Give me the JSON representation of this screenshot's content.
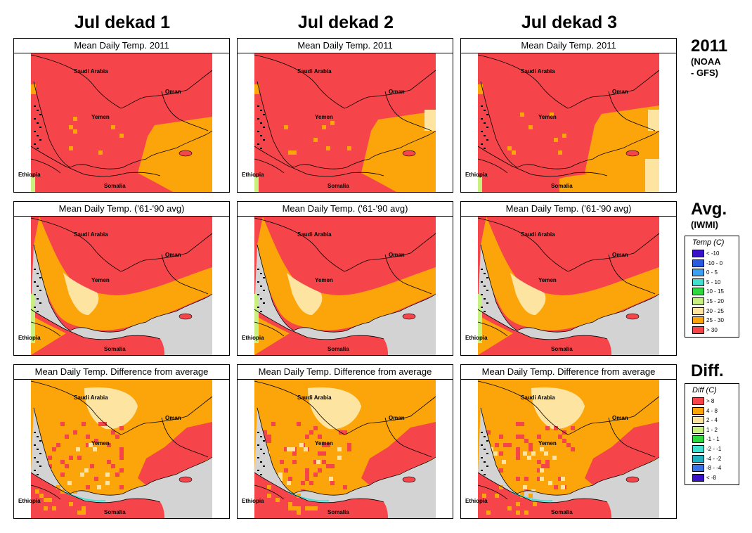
{
  "columns": [
    "Jul dekad 1",
    "Jul dekad 2",
    "Jul dekad 3"
  ],
  "rows": [
    {
      "panel_titles": [
        "Mean Daily Temp. 2011",
        "Mean Daily Temp. 2011",
        "Mean Daily Temp. 2011"
      ],
      "side_label": "2011",
      "side_sublabel": [
        "(NOAA",
        "- GFS)"
      ]
    },
    {
      "panel_titles": [
        "Mean Daily Temp. ('61-'90 avg)",
        "Mean Daily Temp. ('61-'90 avg)",
        "Mean Daily Temp. ('61-'90 avg)"
      ],
      "side_label": "Avg.",
      "side_sublabel": [
        "(IWMI)"
      ]
    },
    {
      "panel_titles": [
        "Mean Daily Temp. Difference from average",
        "Mean Daily Temp. Difference from average",
        "Mean Daily Temp. Difference from average"
      ],
      "side_label": "Diff.",
      "side_sublabel": []
    }
  ],
  "map_labels": {
    "saudi_arabia": "Saudi Arabia",
    "oman": "Oman",
    "yemen": "Yemen",
    "ethiopia": "Ethiopia",
    "somalia": "Somalia"
  },
  "legend_temp": {
    "title": "Temp (C)",
    "items": [
      {
        "label": "< -10",
        "color": "#3a10c8"
      },
      {
        "label": "-10 -  0",
        "color": "#2a5ae0"
      },
      {
        "label": "0 -  5",
        "color": "#3aa0f0"
      },
      {
        "label": "5 - 10",
        "color": "#40e0d0"
      },
      {
        "label": "10 - 15",
        "color": "#30d840"
      },
      {
        "label": "15 - 20",
        "color": "#c8f080"
      },
      {
        "label": "20 - 25",
        "color": "#fde4a0"
      },
      {
        "label": "25 - 30",
        "color": "#fca50a"
      },
      {
        "label": "> 30",
        "color": "#f5454a"
      }
    ]
  },
  "legend_diff": {
    "title": "Diff (C)",
    "items": [
      {
        "label": "> 8",
        "color": "#f5454a"
      },
      {
        "label": "4 - 8",
        "color": "#fca50a"
      },
      {
        "label": "2 - 4",
        "color": "#fde4a0"
      },
      {
        "label": "1 - 2",
        "color": "#c8f080"
      },
      {
        "label": "-1 - 1",
        "color": "#30d840"
      },
      {
        "label": "-2 - -1",
        "color": "#40e0d0"
      },
      {
        "label": "-4 - -2",
        "color": "#20b0c0"
      },
      {
        "label": "-8 - -4",
        "color": "#3a70e8"
      },
      {
        "label": "< -8",
        "color": "#3a10c8"
      }
    ]
  },
  "colors": {
    "hot": "#f5454a",
    "warm": "#fca50a",
    "mild": "#fde4a0",
    "lightgreen": "#c8f080",
    "green": "#30d840",
    "sea": "#d3d3d3",
    "cyan": "#40e0d0"
  }
}
